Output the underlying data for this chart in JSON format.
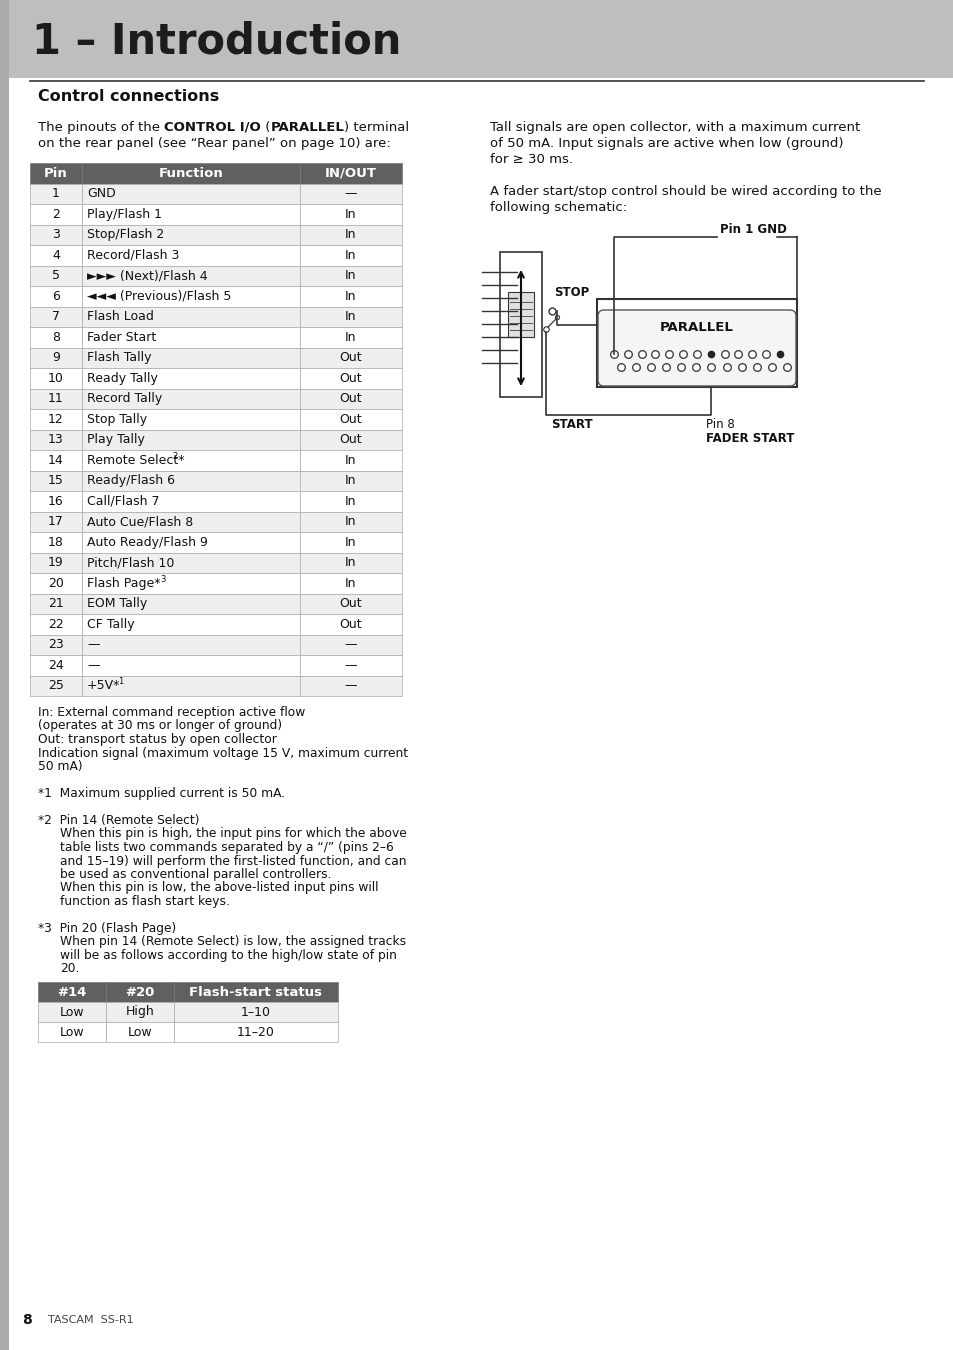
{
  "title": "1 – Introduction",
  "title_bg": "#bebebe",
  "section_title": "Control connections",
  "table_header": [
    "Pin",
    "Function",
    "IN/OUT"
  ],
  "table_header_bg": "#606060",
  "table_header_color": "#ffffff",
  "table_row_bg_odd": "#efefef",
  "table_row_bg_even": "#ffffff",
  "table_data": [
    [
      "1",
      "GND",
      "—"
    ],
    [
      "2",
      "Play/Flash 1",
      "In"
    ],
    [
      "3",
      "Stop/Flash 2",
      "In"
    ],
    [
      "4",
      "Record/Flash 3",
      "In"
    ],
    [
      "5",
      "▶▶| (Next)/Flash 4",
      "In"
    ],
    [
      "6",
      "|<< (Previous)/Flash 5",
      "In"
    ],
    [
      "7",
      "Flash Load",
      "In"
    ],
    [
      "8",
      "Fader Start",
      "In"
    ],
    [
      "9",
      "Flash Tally",
      "Out"
    ],
    [
      "10",
      "Ready Tally",
      "Out"
    ],
    [
      "11",
      "Record Tally",
      "Out"
    ],
    [
      "12",
      "Stop Tally",
      "Out"
    ],
    [
      "13",
      "Play Tally",
      "Out"
    ],
    [
      "14",
      "Remote Select*2",
      "In"
    ],
    [
      "15",
      "Ready/Flash 6",
      "In"
    ],
    [
      "16",
      "Call/Flash 7",
      "In"
    ],
    [
      "17",
      "Auto Cue/Flash 8",
      "In"
    ],
    [
      "18",
      "Auto Ready/Flash 9",
      "In"
    ],
    [
      "19",
      "Pitch/Flash 10",
      "In"
    ],
    [
      "20",
      "Flash Page*3",
      "In"
    ],
    [
      "21",
      "EOM Tally",
      "Out"
    ],
    [
      "22",
      "CF Tally",
      "Out"
    ],
    [
      "23",
      "—",
      "—"
    ],
    [
      "24",
      "—",
      "—"
    ],
    [
      "25",
      "+5V*1",
      "—"
    ]
  ],
  "bottom_table_header": [
    "#14",
    "#20",
    "Flash-start status"
  ],
  "bottom_table_header_bg": "#606060",
  "bottom_table_header_color": "#ffffff",
  "bottom_table_data": [
    [
      "Low",
      "High",
      "1–10"
    ],
    [
      "Low",
      "Low",
      "11–20"
    ]
  ],
  "page_number": "8",
  "page_footer": "TASCAM  SS-R1",
  "bg_color": "#ffffff"
}
